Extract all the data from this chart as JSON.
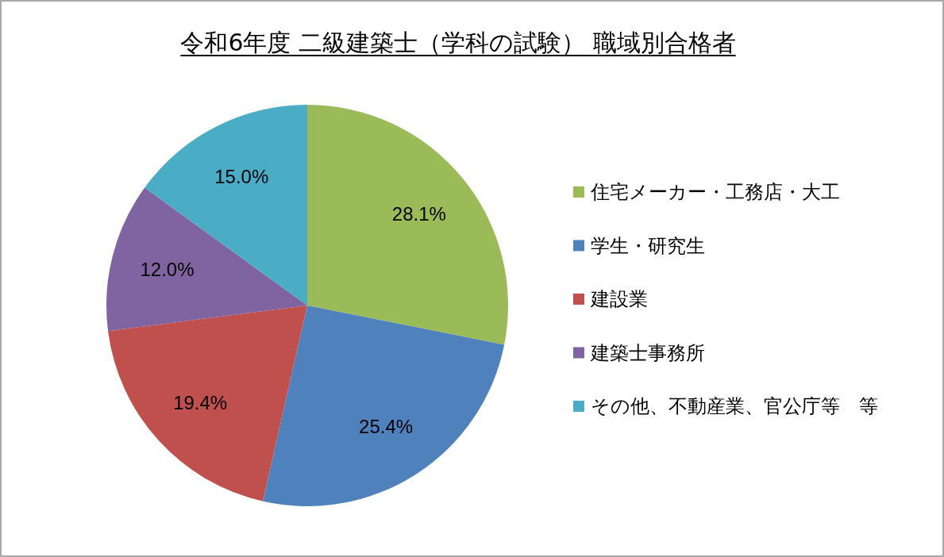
{
  "chart_data": {
    "type": "pie",
    "title": "令和6年度 二級建築士（学科の試験） 職域別合格者",
    "categories": [
      "住宅メーカー・工務店・大工",
      "学生・研究生",
      "建設業",
      "建築士事務所",
      "その他、不動産業、官公庁等　等"
    ],
    "values": [
      28.1,
      25.4,
      19.4,
      12.0,
      15.0
    ],
    "colors": [
      "#9bbb59",
      "#4f81bd",
      "#c0504d",
      "#8064a2",
      "#4bacc6"
    ],
    "value_labels": [
      "28.1%",
      "25.4%",
      "19.4%",
      "12.0%",
      "15.0%"
    ],
    "legend": "right"
  }
}
